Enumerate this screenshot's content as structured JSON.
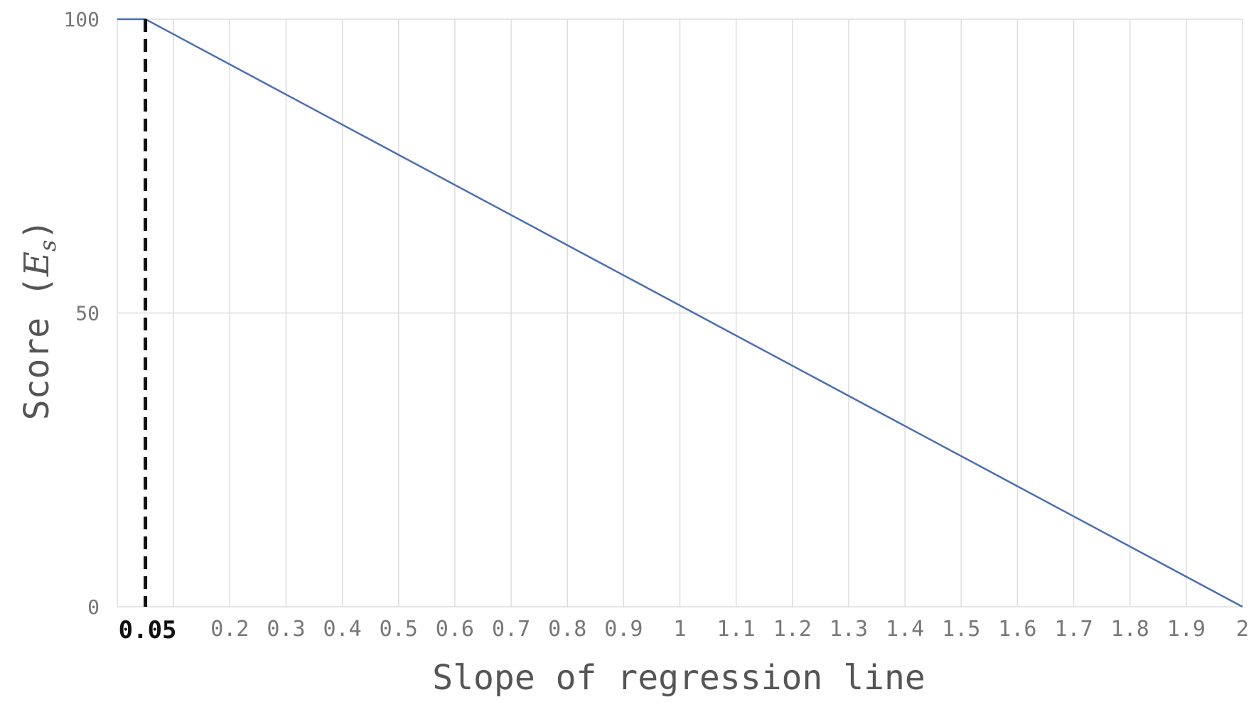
{
  "chart_data": {
    "type": "line",
    "title": "",
    "xlabel": "Slope of regression line",
    "ylabel": "Score",
    "ylabel_symbol": "E",
    "ylabel_subscript": "s",
    "xlim": [
      0,
      2
    ],
    "ylim": [
      0,
      100
    ],
    "grid": true,
    "x_ticks": [
      0.2,
      0.3,
      0.4,
      0.5,
      0.6,
      0.7,
      0.8,
      0.9,
      1,
      1.1,
      1.2,
      1.3,
      1.4,
      1.5,
      1.6,
      1.7,
      1.8,
      1.9,
      2
    ],
    "x_tick_labels": [
      "0.2",
      "0.3",
      "0.4",
      "0.5",
      "0.6",
      "0.7",
      "0.8",
      "0.9",
      "1",
      "1.1",
      "1.2",
      "1.3",
      "1.4",
      "1.5",
      "1.6",
      "1.7",
      "1.8",
      "1.9",
      "2"
    ],
    "y_ticks": [
      0,
      50,
      100
    ],
    "y_tick_labels": [
      "0",
      "50",
      "100"
    ],
    "series": [
      {
        "x": [
          0,
          0.05,
          2
        ],
        "y": [
          100,
          100,
          0
        ],
        "color": "#4a6fb5"
      }
    ],
    "annotations": [
      {
        "type": "vline",
        "x": 0.05,
        "style": "dashed",
        "color": "#111111",
        "label": "0.05"
      }
    ]
  }
}
